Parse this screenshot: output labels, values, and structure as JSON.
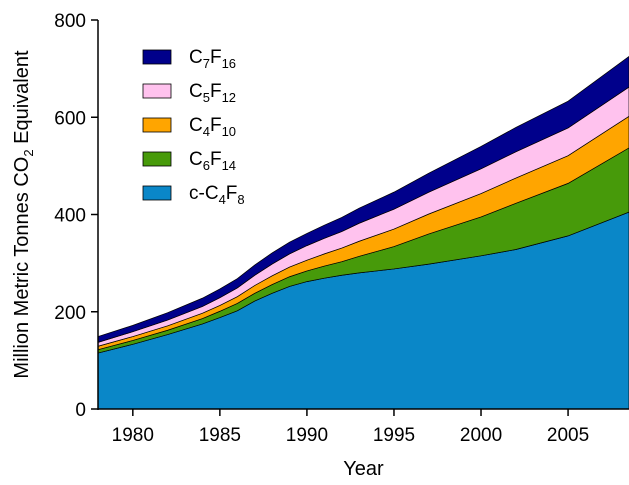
{
  "chart_data": {
    "type": "area",
    "stacked": true,
    "xlabel": "Year",
    "ylabel_parts": [
      "Million Metric Tonnes CO",
      "2",
      " Equivalent"
    ],
    "xlim": [
      1978,
      2008.5
    ],
    "ylim": [
      0,
      800
    ],
    "xticks": [
      1980,
      1985,
      1990,
      1995,
      2000,
      2005
    ],
    "yticks": [
      0,
      200,
      400,
      600,
      800
    ],
    "grid": false,
    "legend_position": "top-left",
    "x": [
      1978,
      1980,
      1982,
      1984,
      1985,
      1986,
      1987,
      1988,
      1989,
      1990,
      1991,
      1992,
      1993,
      1995,
      1997,
      2000,
      2002,
      2005,
      2008.5
    ],
    "series": [
      {
        "name": "c-C4F8",
        "label_parts": [
          "c-C",
          "4",
          "F",
          "8"
        ],
        "color": "#0a87c8",
        "values": [
          115,
          133,
          153,
          175,
          188,
          202,
          222,
          238,
          252,
          262,
          269,
          275,
          280,
          288,
          298,
          315,
          328,
          356,
          405
        ]
      },
      {
        "name": "C6F14",
        "label_parts": [
          "C",
          "6",
          "F",
          "14"
        ],
        "color": "#479a0a",
        "values": [
          7,
          8,
          9,
          11,
          13,
          15,
          16,
          18,
          20,
          22,
          25,
          28,
          34,
          46,
          62,
          80,
          95,
          108,
          132
        ]
      },
      {
        "name": "C4F10",
        "label_parts": [
          "C",
          "4",
          "F",
          "10"
        ],
        "color": "#ffa500",
        "values": [
          7,
          8,
          9,
          11,
          12,
          14,
          16,
          18,
          20,
          22,
          25,
          28,
          31,
          36,
          41,
          48,
          52,
          57,
          65
        ]
      },
      {
        "name": "C5F12",
        "label_parts": [
          "C",
          "5",
          "F",
          "12"
        ],
        "color": "#ffc2ee",
        "values": [
          8,
          10,
          12,
          14,
          16,
          18,
          21,
          24,
          27,
          30,
          32,
          34,
          37,
          41,
          45,
          51,
          54,
          57,
          60
        ]
      },
      {
        "name": "C7F16",
        "label_parts": [
          "C",
          "7",
          "F",
          "16"
        ],
        "color": "#00008b",
        "values": [
          12,
          13,
          15,
          17,
          18,
          19,
          21,
          23,
          24,
          25,
          27,
          29,
          31,
          35,
          39,
          46,
          50,
          55,
          63
        ]
      }
    ],
    "legend_order": [
      "C7F16",
      "C5F12",
      "C4F10",
      "C6F14",
      "c-C4F8"
    ]
  }
}
